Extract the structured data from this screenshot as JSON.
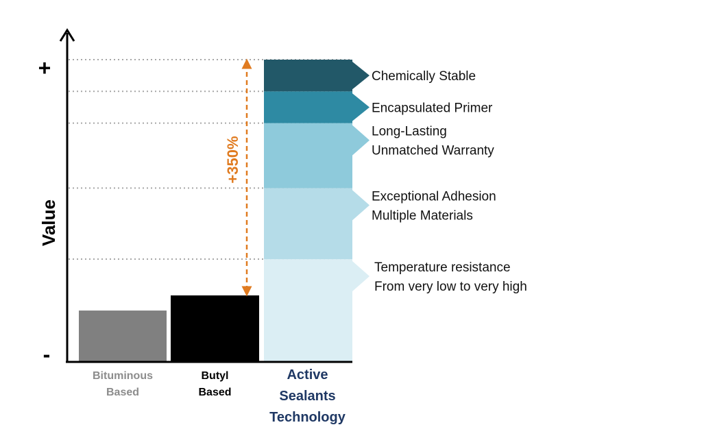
{
  "chart_data": {
    "type": "bar",
    "ylabel": "Value",
    "y_axis_top_label": "+",
    "y_axis_bottom_label": "-",
    "ylim": [
      0,
      100
    ],
    "grid": "dotted horizontal lines at segment boundaries",
    "categories": [
      {
        "label_lines": [
          "Bituminous",
          "Based"
        ],
        "value": 17,
        "color": "#808080",
        "label_color": "#8c8c8c"
      },
      {
        "label_lines": [
          "Butyl",
          "Based"
        ],
        "value": 22,
        "color": "#000000",
        "label_color": "#000000"
      },
      {
        "label_lines": [
          "Active",
          "Sealants",
          "Technology"
        ],
        "value": 100,
        "color": "#b5dce8",
        "label_color": "#1f3864"
      }
    ],
    "stacked_segments": [
      {
        "from": 0,
        "to": 34,
        "color": "#dbeef4",
        "label_lines": [
          "Temperature resistance",
          "From very low to very high"
        ]
      },
      {
        "from": 34,
        "to": 57.5,
        "color": "#b5dce8",
        "label_lines": [
          "Exceptional Adhesion",
          "Multiple Materials"
        ]
      },
      {
        "from": 57.5,
        "to": 79,
        "color": "#8ecadb",
        "label_lines": [
          "Long-Lasting",
          "Unmatched Warranty"
        ]
      },
      {
        "from": 79,
        "to": 89.5,
        "color": "#2e8aa3",
        "label_lines": [
          "Encapsulated Primer"
        ]
      },
      {
        "from": 89.5,
        "to": 100,
        "color": "#225868",
        "label_lines": [
          "Chemically Stable"
        ]
      }
    ],
    "annotation": {
      "text": "+350%",
      "from": 22,
      "to": 100,
      "color": "#e07b20"
    }
  }
}
